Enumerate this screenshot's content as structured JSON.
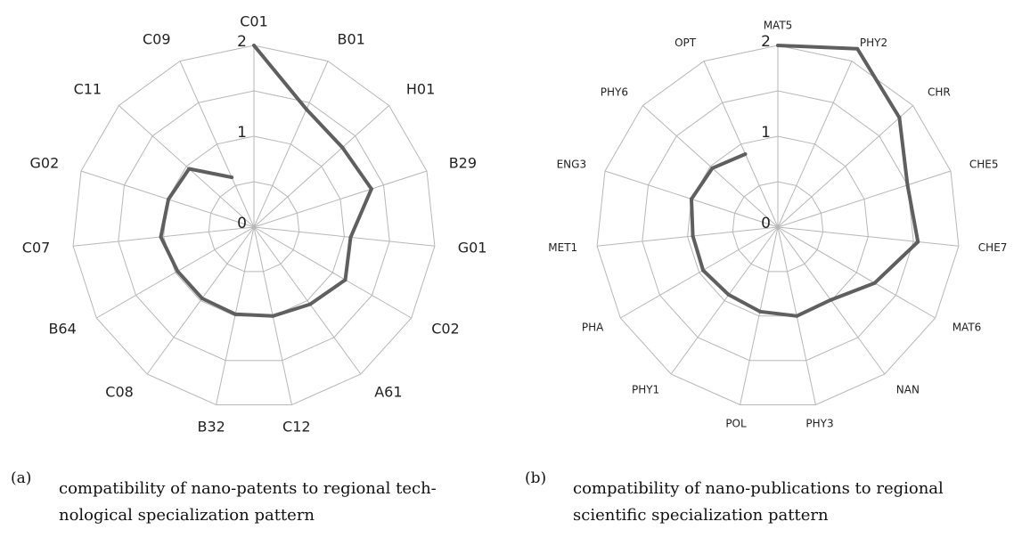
{
  "chart_data": [
    {
      "type": "radar",
      "panel_tag": "(a)",
      "caption": "compatibility of nano-patents to regional technological specialization pattern",
      "caption_lines": [
        "compatibility of nano-patents to regional tech-",
        "nological specialization pattern"
      ],
      "categories": [
        "C01",
        "B01",
        "H01",
        "B29",
        "G01",
        "C02",
        "A61",
        "C12",
        "B32",
        "C08",
        "B64",
        "C07",
        "G02",
        "C11",
        "C09"
      ],
      "tick_labels": [
        "0",
        "1",
        "2"
      ],
      "rlim": [
        0,
        2
      ],
      "grid": true,
      "series": [
        {
          "values": [
            2.0,
            1.42,
            1.31,
            1.36,
            1.07,
            1.16,
            1.05,
            1.0,
            0.98,
            0.97,
            0.97,
            1.03,
            0.99,
            0.96,
            0.6
          ]
        }
      ]
    },
    {
      "type": "radar",
      "panel_tag": "(b)",
      "caption": "compatibility of nano-publications to regional scientific specialization pattern",
      "caption_lines": [
        "compatibility of nano-publications to regional",
        "scientific specialization pattern"
      ],
      "categories": [
        "MAT5",
        "PHY2",
        "CHR",
        "CHE5",
        "CHE7",
        "MAT6",
        "NAN",
        "PHY3",
        "POL",
        "PHY1",
        "PHA",
        "MET1",
        "ENG3",
        "PHY6",
        "OPT"
      ],
      "tick_labels": [
        "0",
        "1",
        "2"
      ],
      "rlim": [
        0,
        2
      ],
      "grid": true,
      "series": [
        {
          "values": [
            2.0,
            2.15,
            1.8,
            1.5,
            1.55,
            1.23,
            0.99,
            1.0,
            0.95,
            0.92,
            0.95,
            0.94,
            1.0,
            0.97,
            0.88
          ]
        }
      ]
    }
  ],
  "colors": {
    "grid": "#b7b7b7",
    "series": "#5f5f5f",
    "text": "#222222"
  }
}
